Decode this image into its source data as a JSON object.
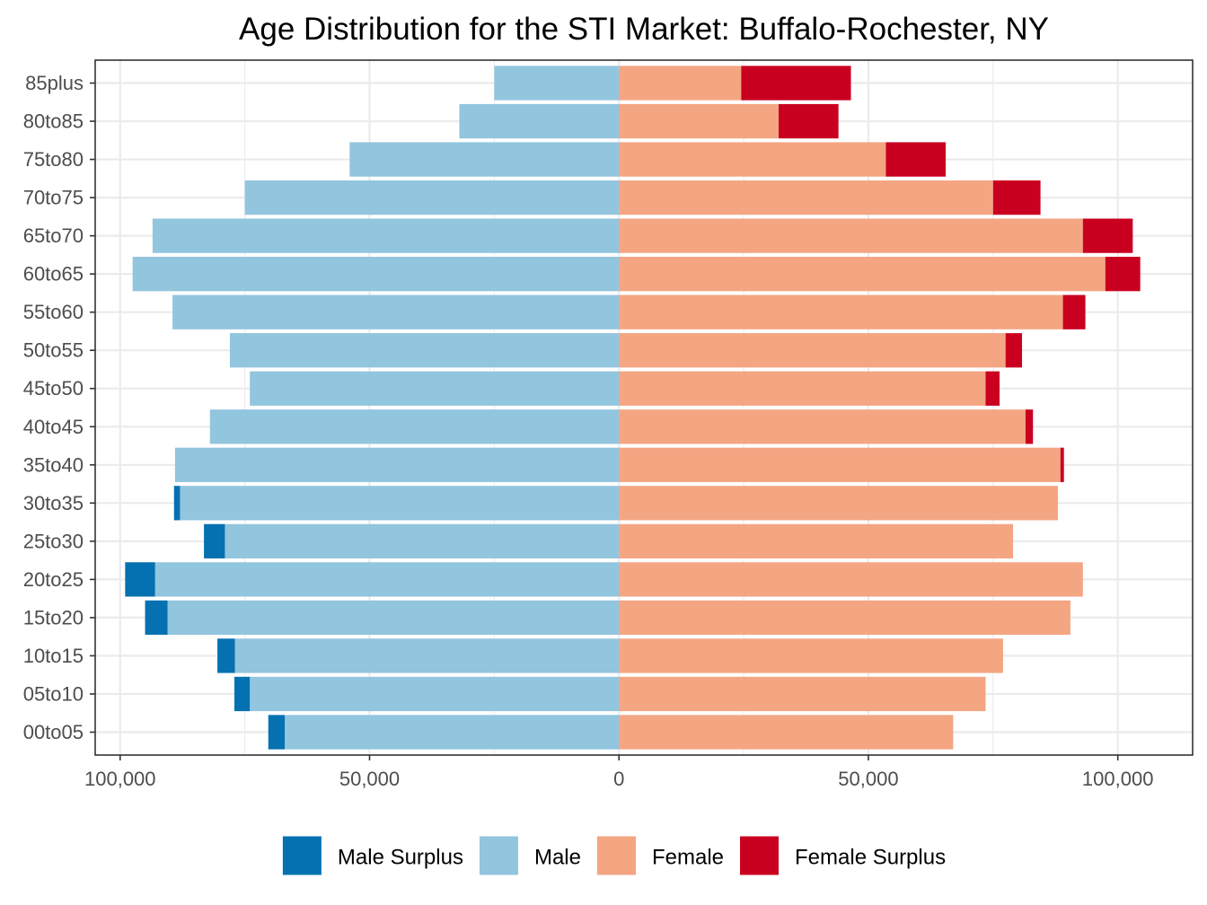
{
  "chart_data": {
    "type": "bar",
    "orientation": "horizontal",
    "title": "Age Distribution for the STI Market: Buffalo-Rochester, NY",
    "xlabel": "",
    "ylabel": "",
    "xlim": [
      -105000,
      115000
    ],
    "x_ticks": [
      -100000,
      -50000,
      0,
      50000,
      100000
    ],
    "x_tick_labels": [
      "100,000",
      "50,000",
      "0",
      "50,000",
      "100,000"
    ],
    "grid": true,
    "legend_position": "bottom",
    "categories": [
      "00to05",
      "05to10",
      "10to15",
      "15to20",
      "20to25",
      "25to30",
      "30to35",
      "35to40",
      "40to45",
      "45to50",
      "50to55",
      "55to60",
      "60to65",
      "65to70",
      "70to75",
      "75to80",
      "80to85",
      "85plus"
    ],
    "series": [
      {
        "name": "Male Surplus",
        "color": "#0571b0",
        "values": [
          3300,
          3100,
          3500,
          4500,
          6000,
          4200,
          1200,
          0,
          0,
          0,
          0,
          0,
          0,
          0,
          0,
          0,
          0,
          0
        ]
      },
      {
        "name": "Male",
        "color": "#92c5de",
        "values": [
          67000,
          74000,
          77000,
          90500,
          93000,
          79000,
          88000,
          89000,
          82000,
          74000,
          78000,
          89500,
          97500,
          93500,
          75000,
          54000,
          32000,
          25000
        ]
      },
      {
        "name": "Female",
        "color": "#f4a582",
        "values": [
          67000,
          73500,
          77000,
          90500,
          93000,
          79000,
          88000,
          88500,
          81500,
          73500,
          77500,
          89000,
          97500,
          93000,
          75000,
          53500,
          32000,
          24500
        ]
      },
      {
        "name": "Female Surplus",
        "color": "#ca0020",
        "values": [
          0,
          0,
          0,
          0,
          0,
          0,
          0,
          700,
          1500,
          2800,
          3300,
          4500,
          7000,
          10000,
          9500,
          12000,
          12000,
          22000
        ]
      }
    ]
  }
}
